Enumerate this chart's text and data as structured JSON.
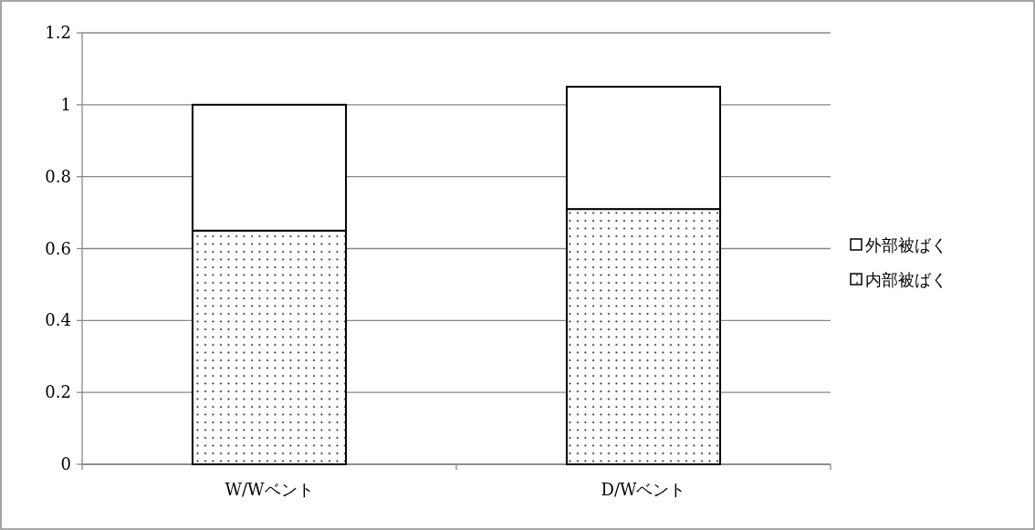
{
  "chart_data": {
    "type": "bar",
    "stacked": true,
    "categories": [
      "W/Wベント",
      "D/Wベント"
    ],
    "series": [
      {
        "name": "内部被ばく",
        "color": "#ffffff",
        "values": [
          0.65,
          0.71
        ]
      },
      {
        "name": "外部被ばく",
        "color": "#ffffff",
        "values": [
          0.35,
          0.34
        ]
      }
    ],
    "ylim": [
      0,
      1.2
    ],
    "yticks": [
      0,
      0.2,
      0.4,
      0.6,
      0.8,
      1,
      1.2
    ],
    "grid": "y",
    "legend": "right"
  }
}
